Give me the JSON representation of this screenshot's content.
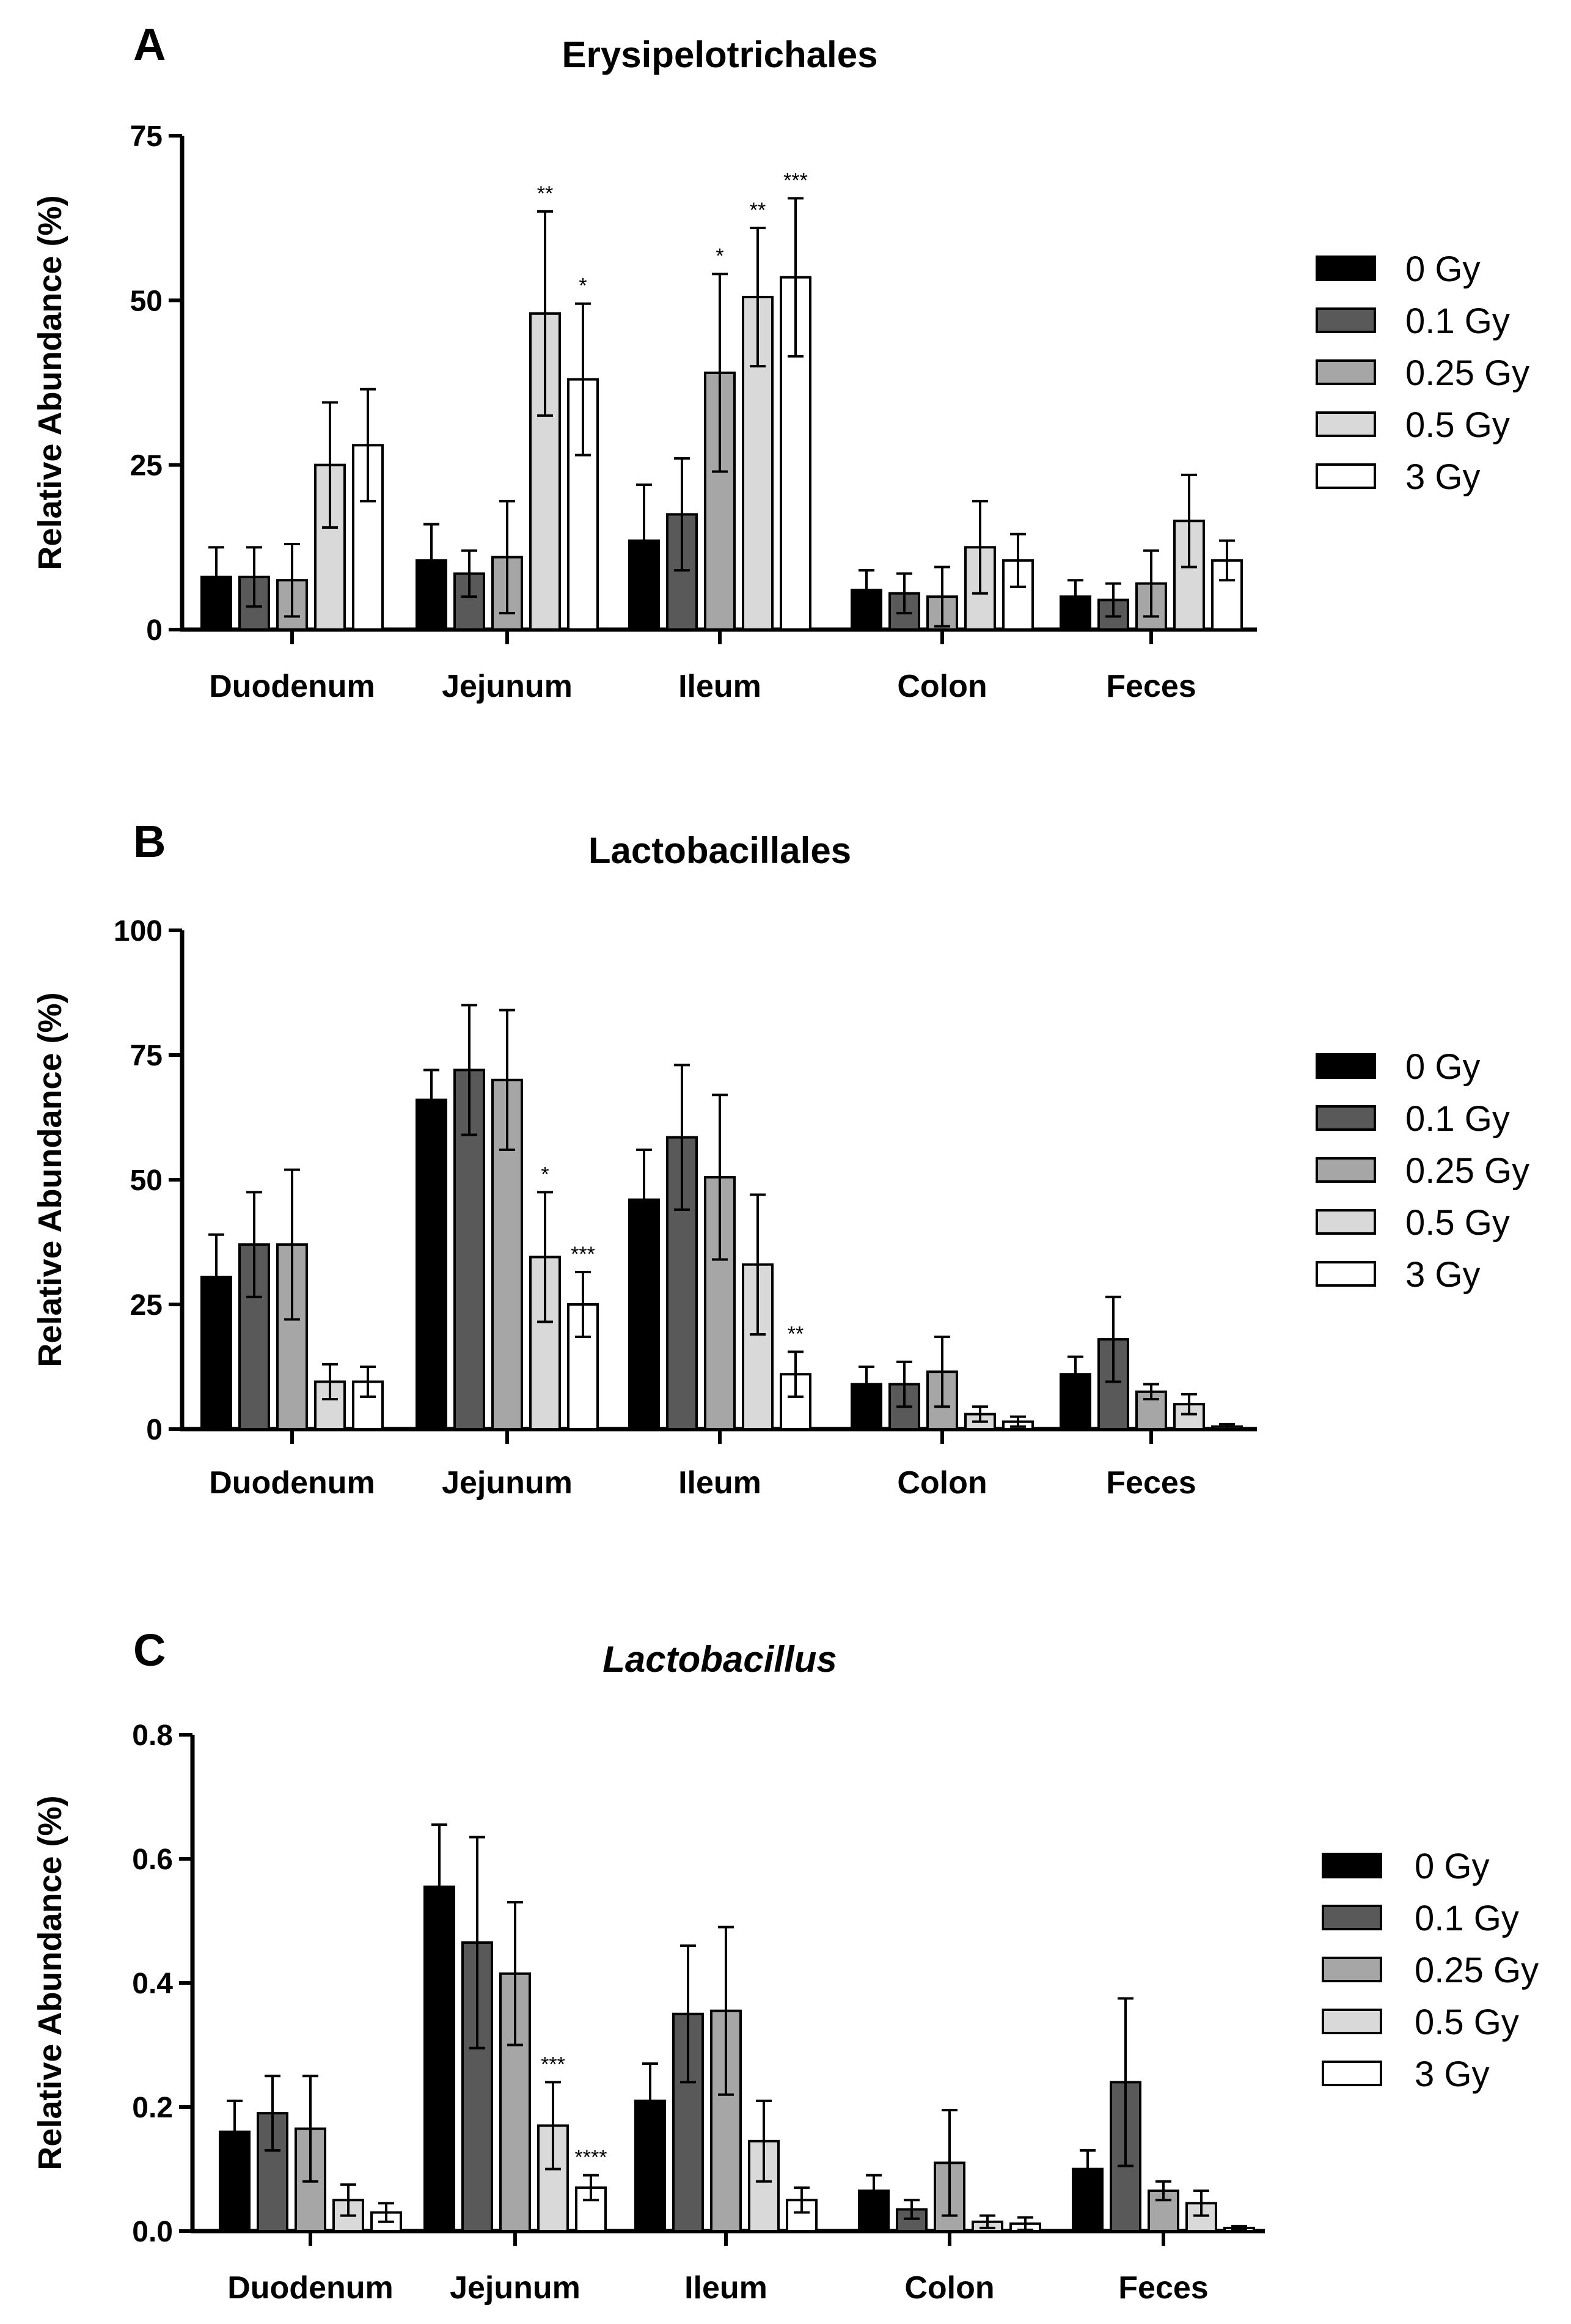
{
  "colors": {
    "0 Gy": "#000000",
    "0.1 Gy": "#595959",
    "0.25 Gy": "#a6a6a6",
    "0.5 Gy": "#d9d9d9",
    "3 Gy": "#ffffff"
  },
  "chart_data": [
    {
      "type": "bar",
      "panel": "A",
      "title": "Erysipelotrichales",
      "italic_title": false,
      "ylabel": "Relative Abundance (%)",
      "xlabel": "",
      "ylim": [
        0,
        75
      ],
      "yticks": [
        0,
        25,
        50,
        75
      ],
      "ytick_labels": [
        "0",
        "25",
        "50",
        "75"
      ],
      "categories": [
        "Duodenum",
        "Jejunum",
        "Ileum",
        "Colon",
        "Feces"
      ],
      "legend": [
        "0 Gy",
        "0.1 Gy",
        "0.25 Gy",
        "0.5 Gy",
        "3 Gy"
      ],
      "series": [
        {
          "name": "0 Gy",
          "values": [
            8,
            10.5,
            13.5,
            6,
            5
          ],
          "errors": [
            4.5,
            5.5,
            8.5,
            3,
            2.5
          ]
        },
        {
          "name": "0.1 Gy",
          "values": [
            8,
            8.5,
            17.5,
            5.5,
            4.5
          ],
          "errors": [
            4.5,
            3.5,
            8.5,
            3,
            2.5
          ]
        },
        {
          "name": "0.25 Gy",
          "values": [
            7.5,
            11,
            39,
            5,
            7
          ],
          "errors": [
            5.5,
            8.5,
            15,
            4.5,
            5
          ]
        },
        {
          "name": "0.5 Gy",
          "values": [
            25,
            48,
            50.5,
            12.5,
            16.5
          ],
          "errors": [
            9.5,
            15.5,
            10.5,
            7,
            7
          ]
        },
        {
          "name": "3 Gy",
          "values": [
            28,
            38,
            53.5,
            10.5,
            10.5
          ],
          "errors": [
            8.5,
            11.5,
            12,
            4,
            3
          ]
        }
      ],
      "annotations": [
        {
          "series": "0.5 Gy",
          "category": "Jejunum",
          "text": "**"
        },
        {
          "series": "3 Gy",
          "category": "Jejunum",
          "text": "*"
        },
        {
          "series": "0.25 Gy",
          "category": "Ileum",
          "text": "*"
        },
        {
          "series": "0.5 Gy",
          "category": "Ileum",
          "text": "**"
        },
        {
          "series": "3 Gy",
          "category": "Ileum",
          "text": "***"
        }
      ]
    },
    {
      "type": "bar",
      "panel": "B",
      "title": "Lactobacillales",
      "italic_title": false,
      "ylabel": "Relative Abundance (%)",
      "xlabel": "",
      "ylim": [
        0,
        100
      ],
      "yticks": [
        0,
        25,
        50,
        75,
        100
      ],
      "ytick_labels": [
        "0",
        "25",
        "50",
        "75",
        "100"
      ],
      "categories": [
        "Duodenum",
        "Jejunum",
        "Ileum",
        "Colon",
        "Feces"
      ],
      "legend": [
        "0 Gy",
        "0.1 Gy",
        "0.25 Gy",
        "0.5 Gy",
        "3 Gy"
      ],
      "series": [
        {
          "name": "0 Gy",
          "values": [
            30.5,
            66,
            46,
            9,
            11
          ],
          "errors": [
            8.5,
            6,
            10,
            3.5,
            3.5
          ]
        },
        {
          "name": "0.1 Gy",
          "values": [
            37,
            72,
            58.5,
            9,
            18
          ],
          "errors": [
            10.5,
            13,
            14.5,
            4.5,
            8.5
          ]
        },
        {
          "name": "0.25 Gy",
          "values": [
            37,
            70,
            50.5,
            11.5,
            7.5
          ],
          "errors": [
            15,
            14,
            16.5,
            7,
            1.5
          ]
        },
        {
          "name": "0.5 Gy",
          "values": [
            9.5,
            34.5,
            33,
            3,
            5
          ],
          "errors": [
            3.5,
            13,
            14,
            1.5,
            2
          ]
        },
        {
          "name": "3 Gy",
          "values": [
            9.5,
            25,
            11,
            1.5,
            0.5
          ],
          "errors": [
            3,
            6.5,
            4.5,
            1,
            0.5
          ]
        }
      ],
      "annotations": [
        {
          "series": "0.5 Gy",
          "category": "Jejunum",
          "text": "*"
        },
        {
          "series": "3 Gy",
          "category": "Jejunum",
          "text": "***"
        },
        {
          "series": "3 Gy",
          "category": "Ileum",
          "text": "**"
        }
      ]
    },
    {
      "type": "bar",
      "panel": "C",
      "title": "Lactobacillus",
      "italic_title": true,
      "ylabel": "Relative Abundance (%)",
      "xlabel": "",
      "ylim": [
        0,
        0.8
      ],
      "yticks": [
        0,
        0.2,
        0.4,
        0.6,
        0.8
      ],
      "ytick_labels": [
        "0.0",
        "0.2",
        "0.4",
        "0.6",
        "0.8"
      ],
      "categories": [
        "Duodenum",
        "Jejunum",
        "Ileum",
        "Colon",
        "Feces"
      ],
      "legend": [
        "0 Gy",
        "0.1 Gy",
        "0.25 Gy",
        "0.5 Gy",
        "3 Gy"
      ],
      "series": [
        {
          "name": "0 Gy",
          "values": [
            0.16,
            0.555,
            0.21,
            0.065,
            0.1
          ],
          "errors": [
            0.05,
            0.1,
            0.06,
            0.025,
            0.03
          ]
        },
        {
          "name": "0.1 Gy",
          "values": [
            0.19,
            0.465,
            0.35,
            0.035,
            0.24
          ],
          "errors": [
            0.06,
            0.17,
            0.11,
            0.015,
            0.135
          ]
        },
        {
          "name": "0.25 Gy",
          "values": [
            0.165,
            0.415,
            0.355,
            0.11,
            0.065
          ],
          "errors": [
            0.085,
            0.115,
            0.135,
            0.085,
            0.015
          ]
        },
        {
          "name": "0.5 Gy",
          "values": [
            0.05,
            0.17,
            0.145,
            0.015,
            0.045
          ],
          "errors": [
            0.025,
            0.07,
            0.065,
            0.01,
            0.02
          ]
        },
        {
          "name": "3 Gy",
          "values": [
            0.03,
            0.07,
            0.05,
            0.012,
            0.005
          ],
          "errors": [
            0.015,
            0.02,
            0.02,
            0.01,
            0.003
          ]
        }
      ],
      "annotations": [
        {
          "series": "0.5 Gy",
          "category": "Jejunum",
          "text": "***"
        },
        {
          "series": "3 Gy",
          "category": "Jejunum",
          "text": "****"
        }
      ]
    }
  ]
}
